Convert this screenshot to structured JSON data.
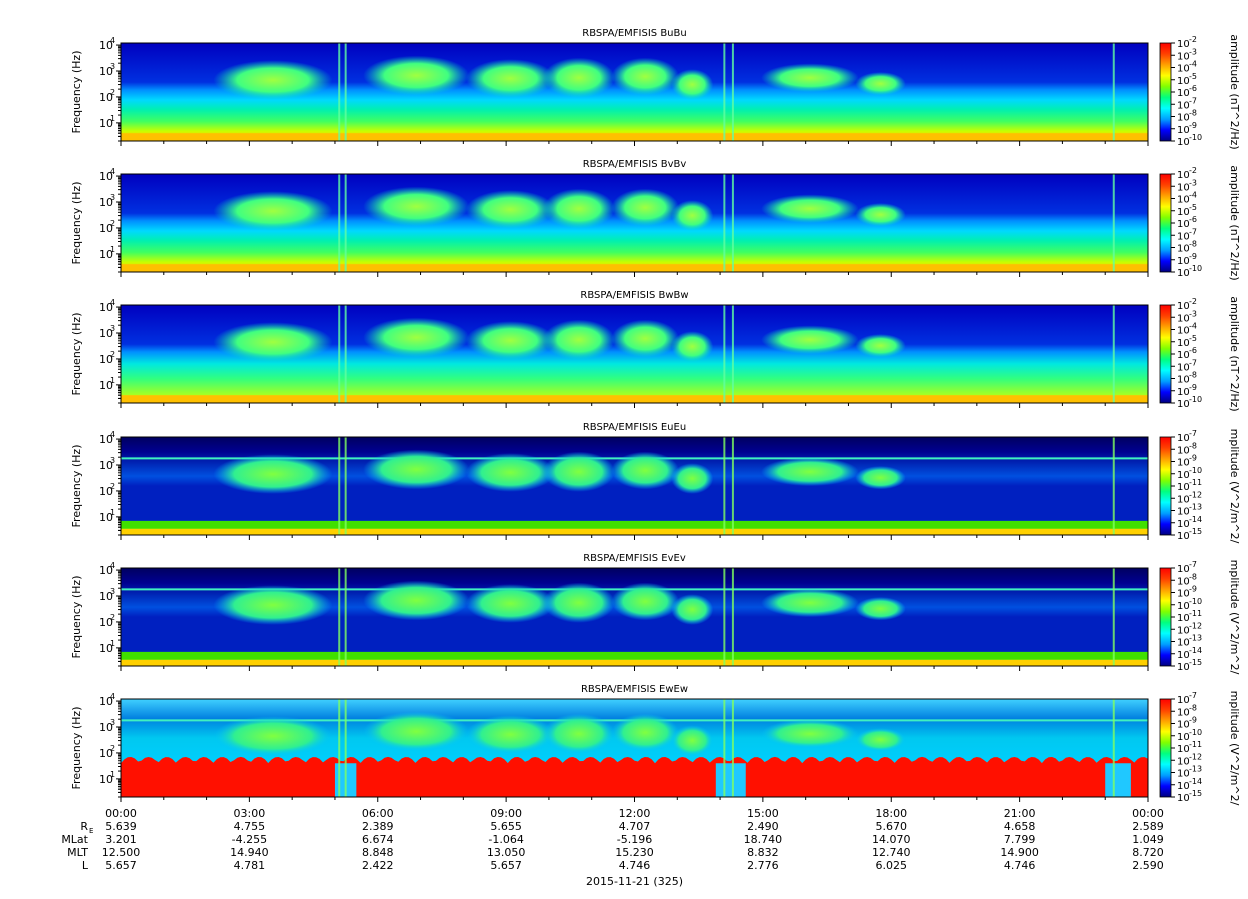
{
  "chart_data": {
    "type": "heatmap",
    "date_label": "2015-11-21 (325)",
    "x_ticks": [
      "00:00",
      "03:00",
      "06:00",
      "09:00",
      "12:00",
      "15:00",
      "18:00",
      "21:00",
      "00:00"
    ],
    "xlim_hours": [
      0,
      24
    ],
    "ylim_hz": [
      2,
      12000
    ],
    "y_scale": "log",
    "ylabel": "Frequency (Hz)",
    "y_tick_bases": [
      "10",
      "10",
      "10",
      "10"
    ],
    "y_tick_exponents": [
      "1",
      "2",
      "3",
      "4"
    ],
    "y_tick_values": [
      10,
      100,
      1000,
      10000
    ],
    "colormap": [
      "#000080",
      "#0000ff",
      "#00a0ff",
      "#00ffff",
      "#00ff80",
      "#80ff00",
      "#ffff00",
      "#ffa000",
      "#ff4000",
      "#ff0000"
    ],
    "panels": [
      {
        "title": "RBSPA/EMFISIS  BuBu",
        "colorbar_label": "amplitude (nT^2/Hz)",
        "cb_base": "10",
        "cb_exponents": [
          "-2",
          "-3",
          "-4",
          "-5",
          "-6",
          "-7",
          "-8",
          "-9",
          "-10"
        ],
        "kind": "B"
      },
      {
        "title": "RBSPA/EMFISIS  BvBv",
        "colorbar_label": "amplitude (nT^2/Hz)",
        "cb_base": "10",
        "cb_exponents": [
          "-2",
          "-3",
          "-4",
          "-5",
          "-6",
          "-7",
          "-8",
          "-9",
          "-10"
        ],
        "kind": "B"
      },
      {
        "title": "RBSPA/EMFISIS  BwBw",
        "colorbar_label": "amplitude (nT^2/Hz)",
        "cb_base": "10",
        "cb_exponents": [
          "-2",
          "-3",
          "-4",
          "-5",
          "-6",
          "-7",
          "-8",
          "-9",
          "-10"
        ],
        "kind": "B"
      },
      {
        "title": "RBSPA/EMFISIS  EuEu",
        "colorbar_label": "mplitude (V^2/m^2/",
        "cb_base": "10",
        "cb_exponents": [
          "-7",
          "-8",
          "-9",
          "-10",
          "-11",
          "-12",
          "-13",
          "-14",
          "-15"
        ],
        "kind": "E"
      },
      {
        "title": "RBSPA/EMFISIS  EvEv",
        "colorbar_label": "mplitude (V^2/m^2/",
        "cb_base": "10",
        "cb_exponents": [
          "-7",
          "-8",
          "-9",
          "-10",
          "-11",
          "-12",
          "-13",
          "-14",
          "-15"
        ],
        "kind": "E"
      },
      {
        "title": "RBSPA/EMFISIS  EwEw",
        "colorbar_label": "mplitude (V^2/m^2/",
        "cb_base": "10",
        "cb_exponents": [
          "-7",
          "-8",
          "-9",
          "-10",
          "-11",
          "-12",
          "-13",
          "-14",
          "-15"
        ],
        "kind": "Ew"
      }
    ],
    "ephemeris": [
      {
        "label": "R",
        "label_sub": "E",
        "values": [
          "5.639",
          "4.755",
          "2.389",
          "5.655",
          "4.707",
          "2.490",
          "5.670",
          "4.658",
          "2.589"
        ]
      },
      {
        "label": "MLat",
        "values": [
          "3.201",
          "-4.255",
          "6.674",
          "-1.064",
          "-5.196",
          "18.740",
          "14.070",
          "7.799",
          "1.049"
        ]
      },
      {
        "label": "MLT",
        "values": [
          "12.500",
          "14.940",
          "8.848",
          "13.050",
          "15.230",
          "8.832",
          "12.740",
          "14.900",
          "8.720"
        ]
      },
      {
        "label": "L",
        "values": [
          "5.657",
          "4.781",
          "2.422",
          "5.657",
          "4.746",
          "2.776",
          "6.025",
          "4.746",
          "2.590"
        ]
      }
    ]
  }
}
